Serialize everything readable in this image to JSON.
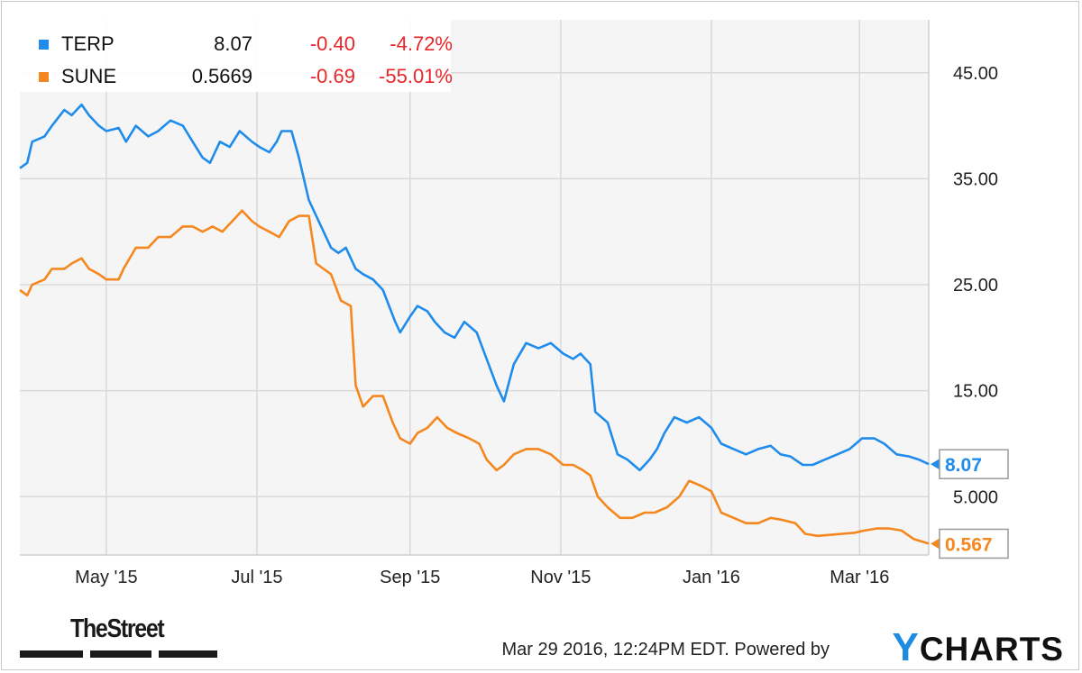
{
  "chart_data": {
    "type": "line",
    "x_ticks": [
      "May '15",
      "Jul '15",
      "Sep '15",
      "Nov '15",
      "Jan '16",
      "Mar '16"
    ],
    "y_ticks": [
      "45.00",
      "35.00",
      "25.00",
      "15.00",
      "5.000"
    ],
    "ylim": [
      -0.5,
      50
    ],
    "grid": true,
    "legend_position": "top-left",
    "series": [
      {
        "name": "TERP",
        "color": "#1f8ceb",
        "last_label": "8.07",
        "legend": {
          "value": "8.07",
          "change": "-0.40",
          "pct_change": "-4.72%"
        },
        "points": [
          [
            "2015-03-27",
            36.0
          ],
          [
            "2015-03-30",
            36.5
          ],
          [
            "2015-04-01",
            38.5
          ],
          [
            "2015-04-06",
            39.0
          ],
          [
            "2015-04-09",
            40.0
          ],
          [
            "2015-04-14",
            41.5
          ],
          [
            "2015-04-17",
            41.0
          ],
          [
            "2015-04-21",
            42.0
          ],
          [
            "2015-04-24",
            41.0
          ],
          [
            "2015-04-28",
            40.0
          ],
          [
            "2015-05-01",
            39.5
          ],
          [
            "2015-05-06",
            39.8
          ],
          [
            "2015-05-09",
            38.5
          ],
          [
            "2015-05-13",
            40.0
          ],
          [
            "2015-05-18",
            39.0
          ],
          [
            "2015-05-22",
            39.5
          ],
          [
            "2015-05-27",
            40.5
          ],
          [
            "2015-06-01",
            40.0
          ],
          [
            "2015-06-05",
            38.5
          ],
          [
            "2015-06-09",
            37.0
          ],
          [
            "2015-06-12",
            36.5
          ],
          [
            "2015-06-16",
            38.5
          ],
          [
            "2015-06-20",
            38.0
          ],
          [
            "2015-06-24",
            39.5
          ],
          [
            "2015-06-29",
            38.5
          ],
          [
            "2015-07-02",
            38.0
          ],
          [
            "2015-07-06",
            37.5
          ],
          [
            "2015-07-09",
            38.5
          ],
          [
            "2015-07-11",
            39.5
          ],
          [
            "2015-07-15",
            39.5
          ],
          [
            "2015-07-18",
            37.0
          ],
          [
            "2015-07-22",
            33.0
          ],
          [
            "2015-07-27",
            30.5
          ],
          [
            "2015-07-31",
            28.5
          ],
          [
            "2015-08-03",
            28.0
          ],
          [
            "2015-08-06",
            28.5
          ],
          [
            "2015-08-10",
            26.5
          ],
          [
            "2015-08-13",
            26.0
          ],
          [
            "2015-08-17",
            25.5
          ],
          [
            "2015-08-21",
            24.5
          ],
          [
            "2015-08-26",
            21.5
          ],
          [
            "2015-08-28",
            20.5
          ],
          [
            "2015-09-01",
            22.0
          ],
          [
            "2015-09-04",
            23.0
          ],
          [
            "2015-09-08",
            22.5
          ],
          [
            "2015-09-11",
            21.5
          ],
          [
            "2015-09-15",
            20.5
          ],
          [
            "2015-09-19",
            20.0
          ],
          [
            "2015-09-23",
            21.5
          ],
          [
            "2015-09-28",
            20.5
          ],
          [
            "2015-10-02",
            18.0
          ],
          [
            "2015-10-06",
            15.5
          ],
          [
            "2015-10-09",
            14.0
          ],
          [
            "2015-10-13",
            17.5
          ],
          [
            "2015-10-18",
            19.5
          ],
          [
            "2015-10-23",
            19.0
          ],
          [
            "2015-10-28",
            19.5
          ],
          [
            "2015-11-02",
            18.5
          ],
          [
            "2015-11-06",
            18.0
          ],
          [
            "2015-11-09",
            18.5
          ],
          [
            "2015-11-13",
            17.5
          ],
          [
            "2015-11-15",
            13.0
          ],
          [
            "2015-11-20",
            12.0
          ],
          [
            "2015-11-24",
            9.0
          ],
          [
            "2015-11-28",
            8.5
          ],
          [
            "2015-12-03",
            7.5
          ],
          [
            "2015-12-07",
            8.5
          ],
          [
            "2015-12-10",
            9.5
          ],
          [
            "2015-12-13",
            11.0
          ],
          [
            "2015-12-17",
            12.5
          ],
          [
            "2015-12-22",
            12.0
          ],
          [
            "2015-12-27",
            12.5
          ],
          [
            "2016-01-01",
            11.5
          ],
          [
            "2016-01-05",
            10.0
          ],
          [
            "2016-01-10",
            9.5
          ],
          [
            "2016-01-15",
            9.0
          ],
          [
            "2016-01-20",
            9.5
          ],
          [
            "2016-01-25",
            9.8
          ],
          [
            "2016-01-29",
            9.0
          ],
          [
            "2016-02-02",
            8.8
          ],
          [
            "2016-02-07",
            8.0
          ],
          [
            "2016-02-11",
            8.0
          ],
          [
            "2016-02-16",
            8.5
          ],
          [
            "2016-02-21",
            9.0
          ],
          [
            "2016-02-26",
            9.5
          ],
          [
            "2016-03-02",
            10.5
          ],
          [
            "2016-03-07",
            10.5
          ],
          [
            "2016-03-11",
            10.0
          ],
          [
            "2016-03-16",
            9.0
          ],
          [
            "2016-03-21",
            8.8
          ],
          [
            "2016-03-25",
            8.5
          ],
          [
            "2016-03-29",
            8.07
          ]
        ]
      },
      {
        "name": "SUNE",
        "color": "#f5871f",
        "last_label": "0.567",
        "legend": {
          "value": "0.5669",
          "change": "-0.69",
          "pct_change": "-55.01%"
        },
        "points": [
          [
            "2015-03-27",
            24.5
          ],
          [
            "2015-03-30",
            24.0
          ],
          [
            "2015-04-01",
            25.0
          ],
          [
            "2015-04-06",
            25.5
          ],
          [
            "2015-04-09",
            26.5
          ],
          [
            "2015-04-14",
            26.5
          ],
          [
            "2015-04-17",
            27.0
          ],
          [
            "2015-04-21",
            27.5
          ],
          [
            "2015-04-24",
            26.5
          ],
          [
            "2015-04-28",
            26.0
          ],
          [
            "2015-05-01",
            25.5
          ],
          [
            "2015-05-06",
            25.5
          ],
          [
            "2015-05-08",
            26.5
          ],
          [
            "2015-05-13",
            28.5
          ],
          [
            "2015-05-18",
            28.5
          ],
          [
            "2015-05-22",
            29.5
          ],
          [
            "2015-05-27",
            29.5
          ],
          [
            "2015-06-01",
            30.5
          ],
          [
            "2015-06-05",
            30.5
          ],
          [
            "2015-06-09",
            30.0
          ],
          [
            "2015-06-13",
            30.5
          ],
          [
            "2015-06-17",
            30.0
          ],
          [
            "2015-06-21",
            31.0
          ],
          [
            "2015-06-25",
            32.0
          ],
          [
            "2015-06-29",
            31.0
          ],
          [
            "2015-07-02",
            30.5
          ],
          [
            "2015-07-06",
            30.0
          ],
          [
            "2015-07-10",
            29.5
          ],
          [
            "2015-07-14",
            31.0
          ],
          [
            "2015-07-18",
            31.5
          ],
          [
            "2015-07-22",
            31.5
          ],
          [
            "2015-07-25",
            27.0
          ],
          [
            "2015-07-28",
            26.5
          ],
          [
            "2015-07-31",
            26.0
          ],
          [
            "2015-08-04",
            23.5
          ],
          [
            "2015-08-08",
            23.0
          ],
          [
            "2015-08-10",
            15.5
          ],
          [
            "2015-08-13",
            13.5
          ],
          [
            "2015-08-17",
            14.5
          ],
          [
            "2015-08-21",
            14.5
          ],
          [
            "2015-08-25",
            12.0
          ],
          [
            "2015-08-28",
            10.5
          ],
          [
            "2015-09-01",
            10.0
          ],
          [
            "2015-09-04",
            11.0
          ],
          [
            "2015-09-08",
            11.5
          ],
          [
            "2015-09-12",
            12.5
          ],
          [
            "2015-09-16",
            11.5
          ],
          [
            "2015-09-20",
            11.0
          ],
          [
            "2015-09-25",
            10.5
          ],
          [
            "2015-09-29",
            10.0
          ],
          [
            "2015-10-02",
            8.5
          ],
          [
            "2015-10-06",
            7.5
          ],
          [
            "2015-10-09",
            8.0
          ],
          [
            "2015-10-13",
            9.0
          ],
          [
            "2015-10-18",
            9.5
          ],
          [
            "2015-10-23",
            9.5
          ],
          [
            "2015-10-28",
            9.0
          ],
          [
            "2015-11-02",
            8.0
          ],
          [
            "2015-11-06",
            8.0
          ],
          [
            "2015-11-10",
            7.5
          ],
          [
            "2015-11-13",
            7.0
          ],
          [
            "2015-11-16",
            5.0
          ],
          [
            "2015-11-20",
            4.0
          ],
          [
            "2015-11-25",
            3.0
          ],
          [
            "2015-11-30",
            3.0
          ],
          [
            "2015-12-05",
            3.5
          ],
          [
            "2015-12-09",
            3.5
          ],
          [
            "2015-12-14",
            4.0
          ],
          [
            "2015-12-19",
            5.0
          ],
          [
            "2015-12-23",
            6.5
          ],
          [
            "2015-12-28",
            6.0
          ],
          [
            "2016-01-01",
            5.5
          ],
          [
            "2016-01-05",
            3.5
          ],
          [
            "2016-01-10",
            3.0
          ],
          [
            "2016-01-15",
            2.5
          ],
          [
            "2016-01-20",
            2.5
          ],
          [
            "2016-01-25",
            3.0
          ],
          [
            "2016-01-30",
            2.8
          ],
          [
            "2016-02-04",
            2.5
          ],
          [
            "2016-02-08",
            1.5
          ],
          [
            "2016-02-13",
            1.3
          ],
          [
            "2016-02-18",
            1.4
          ],
          [
            "2016-02-23",
            1.5
          ],
          [
            "2016-02-28",
            1.6
          ],
          [
            "2016-03-03",
            1.8
          ],
          [
            "2016-03-08",
            2.0
          ],
          [
            "2016-03-13",
            2.0
          ],
          [
            "2016-03-18",
            1.8
          ],
          [
            "2016-03-23",
            1.0
          ],
          [
            "2016-03-29",
            0.567
          ]
        ]
      }
    ]
  },
  "footer": {
    "timestamp": "Mar 29 2016, 12:24PM EDT.  Powered by",
    "ycharts_y": "Y",
    "ycharts_rest": "CHARTS",
    "thestreet_logo": "TheStreet"
  }
}
